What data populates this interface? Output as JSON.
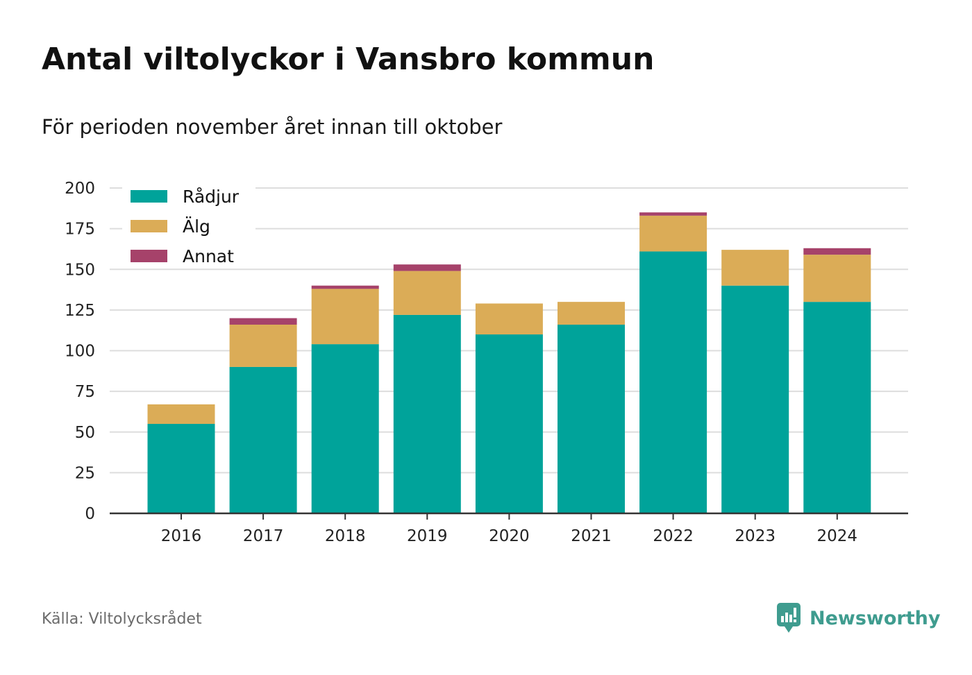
{
  "chart_data": {
    "type": "bar",
    "stacked": true,
    "title": "Antal viltolyckor i Vansbro kommun",
    "subtitle": "För perioden november året innan till oktober",
    "categories": [
      "2016",
      "2017",
      "2018",
      "2019",
      "2020",
      "2021",
      "2022",
      "2023",
      "2024"
    ],
    "series": [
      {
        "name": "Rådjur",
        "color": "#00a39a",
        "values": [
          55,
          90,
          104,
          122,
          110,
          116,
          161,
          140,
          130
        ]
      },
      {
        "name": "Älg",
        "color": "#dbac57",
        "values": [
          12,
          26,
          34,
          27,
          19,
          14,
          22,
          22,
          29
        ]
      },
      {
        "name": "Annat",
        "color": "#a6426a",
        "values": [
          0,
          4,
          2,
          4,
          0,
          0,
          2,
          0,
          4
        ]
      }
    ],
    "ylim": [
      0,
      200
    ],
    "yticks": [
      0,
      25,
      50,
      75,
      100,
      125,
      150,
      175,
      200
    ],
    "grid": true,
    "legend_position": "top-left",
    "xlabel": "",
    "ylabel": ""
  },
  "footer": {
    "source": "Källa: Viltolycksrådet",
    "brand": "Newsworthy"
  },
  "colors": {
    "brand": "#3f9c8f",
    "grid": "#dddddd",
    "axis": "#333333"
  },
  "icons": {
    "brand_logo": "bar-chart-speech-bubble-icon"
  }
}
